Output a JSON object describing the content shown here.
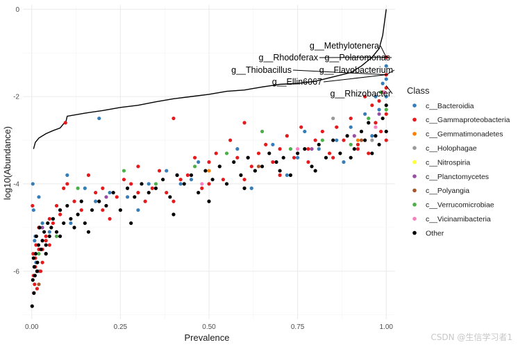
{
  "watermark": "CSDN @生信学习者1",
  "chart_data": {
    "type": "scatter",
    "xlabel": "Prevalence",
    "ylabel": "log10(Abundance)",
    "xlim": [
      -0.025,
      1.025
    ],
    "ylim": [
      -7.1,
      0.1
    ],
    "x_ticks": [
      0,
      0.25,
      0.5,
      0.75,
      1
    ],
    "x_tick_labels": [
      "0.00",
      "0.25",
      "0.50",
      "0.75",
      "1.00"
    ],
    "y_ticks": [
      0,
      -2,
      -4,
      -6
    ],
    "y_tick_labels": [
      "0",
      "-2",
      "-4",
      "-6"
    ],
    "grid": true,
    "legend": {
      "title": "Class",
      "position": "right",
      "entries": [
        {
          "label": "c__Bacteroidia",
          "color": "#377eb8"
        },
        {
          "label": "c__Gammaproteobacteria",
          "color": "#e41a1c"
        },
        {
          "label": "c__Gemmatimonadetes",
          "color": "#ff7f00"
        },
        {
          "label": "c__Holophagae",
          "color": "#999999"
        },
        {
          "label": "c__Nitrospiria",
          "color": "#ffff33"
        },
        {
          "label": "c__Planctomycetes",
          "color": "#984ea3"
        },
        {
          "label": "c__Polyangia",
          "color": "#a65628"
        },
        {
          "label": "c__Verrucomicrobiae",
          "color": "#4daf4a"
        },
        {
          "label": "c__Vicinamibacteria",
          "color": "#f781bf"
        },
        {
          "label": "Other",
          "color": "#000000"
        }
      ]
    },
    "cumulative_line": {
      "x": [
        0.005,
        0.01,
        0.02,
        0.04,
        0.06,
        0.08,
        0.09,
        0.095,
        0.1,
        0.15,
        0.2,
        0.25,
        0.3,
        0.35,
        0.4,
        0.45,
        0.5,
        0.55,
        0.6,
        0.65,
        0.7,
        0.75,
        0.8,
        0.85,
        0.9,
        0.93,
        0.96,
        0.98,
        0.99,
        0.995,
        1.0
      ],
      "y": [
        -3.2,
        -3.05,
        -2.95,
        -2.85,
        -2.78,
        -2.72,
        -2.62,
        -2.62,
        -2.45,
        -2.38,
        -2.32,
        -2.25,
        -2.2,
        -2.12,
        -2.05,
        -2.0,
        -1.95,
        -1.88,
        -1.85,
        -1.78,
        -1.72,
        -1.7,
        -1.65,
        -1.55,
        -1.45,
        -1.3,
        -1.1,
        -0.9,
        -0.6,
        -0.3,
        0.0
      ]
    },
    "annotations": [
      {
        "label": "g__Methylotenera",
        "x": 1.0,
        "y": -1.1
      },
      {
        "label": "g__Rhodoferax",
        "x": 1.0,
        "y": -1.1
      },
      {
        "label": "g__Polaromonas",
        "x": 1.0,
        "y": -1.1
      },
      {
        "label": "g__Thiobacillus",
        "x": 1.0,
        "y": -1.5
      },
      {
        "label": "g__Flavobacterium",
        "x": 1.0,
        "y": -1.5
      },
      {
        "label": "g__Ellin6067",
        "x": 1.0,
        "y": -1.5
      },
      {
        "label": "g__Rhizobacter",
        "x": 1.0,
        "y": -1.75
      }
    ],
    "series": [
      {
        "name": "c__Bacteroidia",
        "color": "#377eb8",
        "x": [
          0.003,
          0.005,
          0.008,
          0.012,
          0.02,
          0.03,
          0.05,
          0.08,
          0.11,
          0.15,
          0.19,
          0.22,
          0.27,
          0.33,
          0.38,
          0.42,
          0.47,
          0.53,
          0.58,
          0.63,
          0.68,
          0.72,
          0.77,
          0.81,
          0.86,
          0.9,
          0.94,
          0.97,
          0.99,
          1.0,
          1.0,
          1.0,
          0.96,
          0.98,
          0.88,
          0.75,
          0.62,
          0.45,
          0.3,
          0.18,
          0.1,
          0.06,
          0.04,
          0.02,
          0.01
        ],
        "y": [
          -4.0,
          -4.6,
          -5.3,
          -5.8,
          -4.3,
          -4.9,
          -5.1,
          -4.6,
          -4.9,
          -4.1,
          -2.5,
          -4.2,
          -4.3,
          -4.0,
          -3.7,
          -4.0,
          -3.5,
          -3.6,
          -3.2,
          -3.7,
          -3.1,
          -3.8,
          -2.8,
          -3.2,
          -3.0,
          -2.7,
          -2.4,
          -2.0,
          -1.7,
          -1.3,
          -1.6,
          -2.0,
          -2.9,
          -2.3,
          -3.5,
          -3.4,
          -4.1,
          -3.9,
          -4.6,
          -4.4,
          -3.8,
          -4.8,
          -5.6,
          -6.0,
          -5.2
        ]
      },
      {
        "name": "c__Gammaproteobacteria",
        "color": "#e41a1c",
        "x": [
          0.002,
          0.004,
          0.006,
          0.008,
          0.01,
          0.012,
          0.015,
          0.02,
          0.025,
          0.03,
          0.04,
          0.05,
          0.06,
          0.07,
          0.08,
          0.09,
          0.1,
          0.12,
          0.14,
          0.16,
          0.18,
          0.2,
          0.22,
          0.24,
          0.26,
          0.28,
          0.3,
          0.32,
          0.34,
          0.36,
          0.38,
          0.4,
          0.42,
          0.44,
          0.46,
          0.48,
          0.5,
          0.52,
          0.54,
          0.56,
          0.58,
          0.6,
          0.62,
          0.64,
          0.66,
          0.68,
          0.7,
          0.72,
          0.74,
          0.76,
          0.78,
          0.8,
          0.82,
          0.84,
          0.86,
          0.88,
          0.9,
          0.92,
          0.94,
          0.96,
          0.97,
          0.98,
          0.99,
          1.0,
          1.0,
          1.0,
          1.0,
          1.0,
          0.995,
          0.985,
          0.95,
          0.92,
          0.85,
          0.78,
          0.7,
          0.6,
          0.5,
          0.4,
          0.3,
          0.2,
          0.095,
          0.005,
          0.01,
          0.015,
          0.02,
          0.03,
          0.04,
          0.05
        ],
        "y": [
          -4.5,
          -5.6,
          -6.5,
          -6.3,
          -5.9,
          -5.4,
          -6.4,
          -5.0,
          -6.0,
          -5.5,
          -5.2,
          -4.8,
          -4.9,
          -4.5,
          -4.7,
          -4.1,
          -4.0,
          -4.4,
          -4.6,
          -3.8,
          -4.2,
          -4.1,
          -4.8,
          -4.3,
          -3.9,
          -4.0,
          -3.6,
          -4.4,
          -4.1,
          -3.7,
          -4.2,
          -2.5,
          -3.9,
          -3.8,
          -3.4,
          -4.1,
          -3.5,
          -3.3,
          -3.9,
          -3.0,
          -3.4,
          -2.6,
          -3.6,
          -3.3,
          -3.1,
          -3.5,
          -3.2,
          -2.9,
          -3.4,
          -2.7,
          -3.2,
          -3.0,
          -2.8,
          -3.3,
          -2.7,
          -3.0,
          -2.5,
          -3.2,
          -2.0,
          -2.2,
          -2.6,
          -2.1,
          -1.9,
          -1.1,
          -1.5,
          -1.8,
          -2.4,
          -3.0,
          -1.9,
          -2.8,
          -3.3,
          -3.1,
          -3.4,
          -3.5,
          -3.8,
          -3.9,
          -4.0,
          -4.4,
          -4.2,
          -4.6,
          -2.6,
          -6.1,
          -5.7,
          -6.0,
          -5.5,
          -5.8,
          -5.3,
          -5.4
        ]
      },
      {
        "name": "c__Verrucomicrobiae",
        "color": "#4daf4a",
        "x": [
          0.02,
          0.07,
          0.13,
          0.26,
          0.35,
          0.46,
          0.55,
          0.65,
          0.73,
          0.82,
          0.9,
          0.95,
          0.985,
          1.0
        ],
        "y": [
          -5.6,
          -5.2,
          -4.1,
          -3.7,
          -4.0,
          -3.6,
          -3.3,
          -2.8,
          -3.2,
          -3.0,
          -3.1,
          -2.5,
          -1.9,
          -2.3
        ]
      },
      {
        "name": "c__Planctomycetes",
        "color": "#984ea3",
        "x": [
          0.03,
          0.21,
          0.41,
          0.61,
          0.79,
          0.91,
          0.98
        ],
        "y": [
          -5.0,
          -4.3,
          -3.8,
          -3.4,
          -3.2,
          -2.9,
          -2.4
        ]
      },
      {
        "name": "c__Gemmatimonadetes",
        "color": "#ff7f00",
        "x": [
          0.5,
          0.92
        ],
        "y": [
          -3.7,
          -3.0
        ]
      },
      {
        "name": "c__Holophagae",
        "color": "#999999",
        "x": [
          0.85,
          0.96
        ],
        "y": [
          -2.5,
          -3.0
        ]
      },
      {
        "name": "c__Polyangia",
        "color": "#a65628",
        "x": [
          0.02,
          0.64,
          0.93
        ],
        "y": [
          -6.3,
          -3.6,
          -3.0
        ]
      },
      {
        "name": "c__Vicinamibacteria",
        "color": "#f781bf",
        "x": [
          0.48,
          0.75,
          0.97,
          0.995
        ],
        "y": [
          -4.0,
          -3.2,
          -2.7,
          -1.9
        ]
      },
      {
        "name": "Other",
        "color": "#000000",
        "x": [
          0.001,
          0.003,
          0.005,
          0.007,
          0.009,
          0.011,
          0.013,
          0.016,
          0.019,
          0.022,
          0.026,
          0.03,
          0.035,
          0.04,
          0.045,
          0.05,
          0.055,
          0.06,
          0.07,
          0.08,
          0.09,
          0.1,
          0.11,
          0.12,
          0.13,
          0.14,
          0.15,
          0.17,
          0.19,
          0.21,
          0.23,
          0.25,
          0.27,
          0.29,
          0.31,
          0.33,
          0.35,
          0.37,
          0.39,
          0.41,
          0.43,
          0.45,
          0.47,
          0.49,
          0.51,
          0.53,
          0.55,
          0.57,
          0.59,
          0.61,
          0.63,
          0.65,
          0.67,
          0.69,
          0.71,
          0.73,
          0.75,
          0.77,
          0.79,
          0.81,
          0.83,
          0.85,
          0.87,
          0.89,
          0.91,
          0.93,
          0.95,
          0.97,
          0.99,
          1.0,
          1.0,
          0.98,
          0.96,
          0.94,
          0.9,
          0.8,
          0.7,
          0.6,
          0.5,
          0.4,
          0.28,
          0.16,
          0.08,
          0.04,
          0.015,
          0.006
        ],
        "y": [
          -6.8,
          -6.2,
          -5.7,
          -5.9,
          -6.1,
          -5.6,
          -5.2,
          -5.8,
          -5.4,
          -5.0,
          -5.5,
          -5.3,
          -5.1,
          -5.4,
          -4.9,
          -5.2,
          -5.0,
          -4.8,
          -5.1,
          -4.6,
          -4.9,
          -4.5,
          -4.8,
          -5.0,
          -4.7,
          -4.4,
          -4.9,
          -4.6,
          -4.4,
          -4.5,
          -4.2,
          -4.6,
          -4.1,
          -4.3,
          -4.0,
          -4.2,
          -4.1,
          -3.9,
          -4.3,
          -3.8,
          -4.0,
          -3.8,
          -4.2,
          -3.7,
          -3.9,
          -3.6,
          -4.0,
          -3.5,
          -3.8,
          -3.4,
          -3.7,
          -3.6,
          -3.3,
          -3.5,
          -3.4,
          -3.8,
          -3.3,
          -3.2,
          -3.6,
          -3.1,
          -3.4,
          -3.0,
          -3.3,
          -2.9,
          -3.2,
          -2.8,
          -2.6,
          -2.9,
          -2.5,
          -2.2,
          -2.8,
          -3.1,
          -3.3,
          -3.0,
          -3.4,
          -3.7,
          -3.7,
          -4.1,
          -4.4,
          -4.7,
          -4.9,
          -5.1,
          -5.2,
          -5.6,
          -6.0,
          -6.5
        ]
      }
    ]
  }
}
